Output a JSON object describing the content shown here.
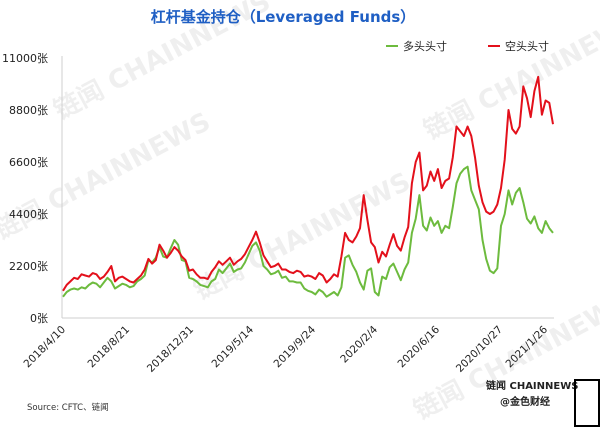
{
  "colors": {
    "long": "#6dbb3e",
    "short": "#e3101b",
    "title": "#1f5fc4"
  },
  "chart_data": {
    "type": "line",
    "title": "杠杆基金持仓（Leveraged Funds）",
    "y_ticks": [
      "0张",
      "2200张",
      "4400张",
      "6600张",
      "8800张",
      "11000张"
    ],
    "ylim": [
      0,
      11000
    ],
    "x_ticks": [
      "2018/4/10",
      "2018/8/21",
      "2018/12/31",
      "2019/5/14",
      "2019/9/24",
      "2020/2/4",
      "2020/6/16",
      "2020/10/27",
      "2021/1/26"
    ],
    "legend_position": "top-right",
    "grid": false,
    "series": [
      {
        "name": "多头头寸",
        "color": "#6dbb3e",
        "values": [
          900,
          1100,
          1200,
          1250,
          1200,
          1300,
          1250,
          1400,
          1500,
          1450,
          1300,
          1500,
          1700,
          1550,
          1250,
          1350,
          1450,
          1400,
          1300,
          1350,
          1550,
          1650,
          1800,
          2450,
          2350,
          2550,
          3000,
          2600,
          2550,
          2950,
          3300,
          3100,
          2450,
          2400,
          1700,
          1650,
          1550,
          1400,
          1350,
          1300,
          1550,
          1650,
          2050,
          1900,
          2100,
          2300,
          1950,
          2050,
          2100,
          2350,
          2700,
          3050,
          3200,
          2850,
          2200,
          2050,
          1850,
          1900,
          2000,
          1700,
          1750,
          1550,
          1550,
          1500,
          1500,
          1250,
          1150,
          1100,
          1000,
          1200,
          1100,
          900,
          1000,
          1100,
          950,
          1300,
          2550,
          2650,
          2250,
          1950,
          1500,
          1200,
          2000,
          2100,
          1100,
          950,
          1750,
          1650,
          2150,
          2300,
          1950,
          1600,
          2050,
          2350,
          3600,
          4200,
          5200,
          3900,
          3700,
          4250,
          3900,
          4100,
          3600,
          3900,
          3800,
          4700,
          5700,
          6100,
          6300,
          6400,
          5400,
          5000,
          4600,
          3300,
          2500,
          2000,
          1900,
          2100,
          3900,
          4400,
          5400,
          4800,
          5300,
          5500,
          4900,
          4200,
          4000,
          4300,
          3800,
          3600,
          4100,
          3800,
          3600
        ]
      },
      {
        "name": "空头头寸",
        "color": "#e3101b",
        "values": [
          1150,
          1400,
          1550,
          1700,
          1650,
          1850,
          1800,
          1750,
          1900,
          1850,
          1650,
          1750,
          1950,
          2200,
          1550,
          1700,
          1750,
          1650,
          1550,
          1500,
          1650,
          1800,
          2050,
          2500,
          2300,
          2450,
          3100,
          2850,
          2550,
          2750,
          3000,
          2850,
          2600,
          2450,
          2000,
          2050,
          1850,
          1700,
          1700,
          1650,
          1950,
          2150,
          2400,
          2250,
          2400,
          2550,
          2250,
          2400,
          2500,
          2700,
          3000,
          3300,
          3650,
          3200,
          2650,
          2400,
          2150,
          2200,
          2300,
          2050,
          2050,
          1950,
          1900,
          2000,
          1950,
          1750,
          1800,
          1750,
          1650,
          1900,
          1800,
          1500,
          1650,
          1850,
          1750,
          2600,
          3600,
          3300,
          3200,
          3450,
          3800,
          5200,
          4150,
          3200,
          3000,
          2350,
          2800,
          2600,
          3100,
          3550,
          3050,
          2850,
          3400,
          3850,
          5700,
          6600,
          7000,
          5400,
          5600,
          6200,
          5800,
          6300,
          5500,
          5800,
          5900,
          6800,
          8100,
          7900,
          7700,
          8100,
          7700,
          6800,
          5600,
          4900,
          4500,
          4400,
          4500,
          4800,
          5500,
          6700,
          8800,
          8000,
          7800,
          8100,
          9800,
          9300,
          8500,
          9600,
          10200,
          8600,
          9200,
          9100,
          8200
        ]
      }
    ]
  },
  "source": "Source: CFTC、链闻",
  "watermark_text": "链闻 CHAINNEWS",
  "brand": {
    "name": "链闻 CHAINNEWS",
    "sub": "@金色财经"
  }
}
